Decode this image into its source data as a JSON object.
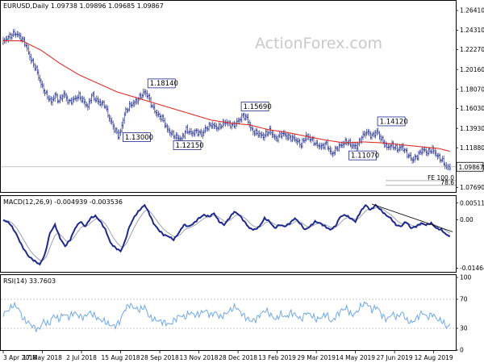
{
  "header": {
    "title": "EURUSD,Daily  1.09738 1.09896 1.09685 1.09867"
  },
  "watermark": "ActionForex.com",
  "colors": {
    "price": "#1e2a8a",
    "ma": "#e0302a",
    "macd": "#1e2a8a",
    "signal": "#9aa0b4",
    "rsi": "#6fa8e8",
    "box": "#1e2a8a",
    "background": "#ffffff"
  },
  "chart_data": [
    {
      "type": "line",
      "title": "EURUSD,Daily  1.09738 1.09896 1.09685 1.09867",
      "x_tick_labels": [
        "3 Apr 2018",
        "17 May 2018",
        "2 Jul 2018",
        "15 Aug 2018",
        "28 Sep 2018",
        "13 Nov 2018",
        "28 Dec 2018",
        "13 Feb 2019",
        "29 Mar 2019",
        "14 May 2019",
        "27 Jun 2019",
        "12 Aug 2019"
      ],
      "x_tick_index": [
        0,
        31,
        62,
        93,
        124,
        155,
        186,
        217,
        248,
        279,
        310,
        341
      ],
      "y_ticks": [
        1.2641,
        1.2431,
        1.2227,
        1.2016,
        1.1807,
        1.1603,
        1.1393,
        1.1188,
        1.0978,
        1.0769
      ],
      "y_tick_labels": [
        "1.26410",
        "1.24310",
        "1.22270",
        "1.20160",
        "1.18070",
        "1.16030",
        "1.13930",
        "1.11880",
        "1.09780",
        "1.07690"
      ],
      "ylim": [
        1.072,
        1.2735
      ],
      "n_bars": 355,
      "close_anchors": [
        [
          0,
          1.231
        ],
        [
          4,
          1.236
        ],
        [
          9,
          1.24
        ],
        [
          13,
          1.237
        ],
        [
          17,
          1.23
        ],
        [
          22,
          1.212
        ],
        [
          26,
          1.202
        ],
        [
          30,
          1.186
        ],
        [
          34,
          1.175
        ],
        [
          38,
          1.167
        ],
        [
          41,
          1.175
        ],
        [
          44,
          1.168
        ],
        [
          48,
          1.176
        ],
        [
          52,
          1.167
        ],
        [
          56,
          1.17
        ],
        [
          60,
          1.174
        ],
        [
          64,
          1.167
        ],
        [
          67,
          1.162
        ],
        [
          70,
          1.175
        ],
        [
          73,
          1.17
        ],
        [
          77,
          1.166
        ],
        [
          80,
          1.165
        ],
        [
          84,
          1.15
        ],
        [
          88,
          1.139
        ],
        [
          91,
          1.132
        ],
        [
          93,
          1.136
        ],
        [
          96,
          1.155
        ],
        [
          100,
          1.163
        ],
        [
          104,
          1.167
        ],
        [
          108,
          1.172
        ],
        [
          112,
          1.178
        ],
        [
          115,
          1.173
        ],
        [
          118,
          1.162
        ],
        [
          122,
          1.154
        ],
        [
          126,
          1.15
        ],
        [
          130,
          1.138
        ],
        [
          134,
          1.133
        ],
        [
          137,
          1.13
        ],
        [
          141,
          1.128
        ],
        [
          145,
          1.138
        ],
        [
          149,
          1.134
        ],
        [
          153,
          1.136
        ],
        [
          157,
          1.133
        ],
        [
          161,
          1.14
        ],
        [
          165,
          1.143
        ],
        [
          170,
          1.14
        ],
        [
          176,
          1.146
        ],
        [
          182,
          1.142
        ],
        [
          186,
          1.147
        ],
        [
          190,
          1.153
        ],
        [
          193,
          1.15
        ],
        [
          197,
          1.137
        ],
        [
          201,
          1.134
        ],
        [
          206,
          1.131
        ],
        [
          211,
          1.137
        ],
        [
          216,
          1.128
        ],
        [
          221,
          1.134
        ],
        [
          226,
          1.13
        ],
        [
          231,
          1.128
        ],
        [
          236,
          1.122
        ],
        [
          240,
          1.131
        ],
        [
          244,
          1.128
        ],
        [
          248,
          1.122
        ],
        [
          252,
          1.12
        ],
        [
          256,
          1.123
        ],
        [
          260,
          1.112
        ],
        [
          264,
          1.118
        ],
        [
          268,
          1.122
        ],
        [
          272,
          1.126
        ],
        [
          276,
          1.121
        ],
        [
          280,
          1.12
        ],
        [
          284,
          1.13
        ],
        [
          288,
          1.136
        ],
        [
          292,
          1.131
        ],
        [
          296,
          1.136
        ],
        [
          300,
          1.127
        ],
        [
          304,
          1.119
        ],
        [
          308,
          1.122
        ],
        [
          312,
          1.117
        ],
        [
          316,
          1.12
        ],
        [
          320,
          1.112
        ],
        [
          324,
          1.106
        ],
        [
          328,
          1.11
        ],
        [
          332,
          1.117
        ],
        [
          336,
          1.114
        ],
        [
          340,
          1.117
        ],
        [
          344,
          1.11
        ],
        [
          348,
          1.105
        ],
        [
          351,
          1.098
        ],
        [
          354,
          1.0987
        ]
      ],
      "moving_average_anchors": [
        [
          0,
          1.232
        ],
        [
          15,
          1.232
        ],
        [
          30,
          1.222
        ],
        [
          45,
          1.208
        ],
        [
          60,
          1.196
        ],
        [
          75,
          1.187
        ],
        [
          90,
          1.178
        ],
        [
          105,
          1.172
        ],
        [
          120,
          1.166
        ],
        [
          135,
          1.16
        ],
        [
          150,
          1.154
        ],
        [
          165,
          1.148
        ],
        [
          180,
          1.145
        ],
        [
          195,
          1.143
        ],
        [
          210,
          1.138
        ],
        [
          225,
          1.135
        ],
        [
          240,
          1.131
        ],
        [
          255,
          1.127
        ],
        [
          270,
          1.124
        ],
        [
          285,
          1.125
        ],
        [
          300,
          1.124
        ],
        [
          315,
          1.122
        ],
        [
          330,
          1.12
        ],
        [
          345,
          1.118
        ],
        [
          354,
          1.115
        ]
      ],
      "annotations": [
        {
          "label": "1.18140",
          "bar": 112,
          "value": 1.1814
        },
        {
          "label": "1.15690",
          "bar": 186,
          "value": 1.1569
        },
        {
          "label": "1.14120",
          "bar": 294,
          "value": 1.1412
        },
        {
          "label": "1.13000",
          "bar": 91,
          "value": 1.13
        },
        {
          "label": "1.12150",
          "bar": 131,
          "value": 1.1215
        },
        {
          "label": "1.11070",
          "bar": 270,
          "value": 1.1107
        }
      ],
      "current_price_label": "1.09867",
      "current_price": 1.09867,
      "fibonacci": [
        {
          "label": "FE 100.0",
          "value": 1.084
        },
        {
          "label": "78.6",
          "value": 1.079
        }
      ]
    },
    {
      "type": "line",
      "title": "MACD(12,26,9) -0.004939 -0.003536",
      "y_ticks": [
        0.005114,
        0.0,
        -0.014647
      ],
      "y_tick_labels": [
        "0.005114",
        "0.00",
        "-0.014647"
      ],
      "ylim": [
        -0.0155,
        0.0065
      ],
      "macd_anchors": [
        [
          0,
          0.0
        ],
        [
          5,
          -0.001
        ],
        [
          10,
          -0.004
        ],
        [
          15,
          -0.008
        ],
        [
          20,
          -0.011
        ],
        [
          25,
          -0.0125
        ],
        [
          29,
          -0.0135
        ],
        [
          33,
          -0.0105
        ],
        [
          37,
          -0.004
        ],
        [
          41,
          -0.0015
        ],
        [
          45,
          -0.0055
        ],
        [
          49,
          -0.008
        ],
        [
          53,
          -0.006
        ],
        [
          57,
          -0.0025
        ],
        [
          61,
          -0.0005
        ],
        [
          65,
          -0.002
        ],
        [
          69,
          0.0005
        ],
        [
          73,
          0.0012
        ],
        [
          77,
          -0.0005
        ],
        [
          81,
          -0.003
        ],
        [
          85,
          -0.007
        ],
        [
          89,
          -0.0085
        ],
        [
          93,
          -0.0095
        ],
        [
          96,
          -0.007
        ],
        [
          100,
          -0.002
        ],
        [
          104,
          0.001
        ],
        [
          108,
          0.003
        ],
        [
          112,
          0.0045
        ],
        [
          115,
          0.0025
        ],
        [
          119,
          -0.001
        ],
        [
          123,
          -0.003
        ],
        [
          127,
          -0.0045
        ],
        [
          131,
          -0.005
        ],
        [
          135,
          -0.006
        ],
        [
          139,
          -0.004
        ],
        [
          143,
          -0.0015
        ],
        [
          147,
          -0.002
        ],
        [
          151,
          -0.001
        ],
        [
          155,
          0.0005
        ],
        [
          159,
          0.0015
        ],
        [
          163,
          0.001
        ],
        [
          167,
          0.002
        ],
        [
          171,
          -0.0005
        ],
        [
          175,
          -0.0015
        ],
        [
          179,
          0.0005
        ],
        [
          183,
          0.0025
        ],
        [
          187,
          0.0015
        ],
        [
          191,
          -0.0005
        ],
        [
          195,
          -0.0025
        ],
        [
          199,
          -0.003
        ],
        [
          203,
          -0.002
        ],
        [
          207,
          0.0005
        ],
        [
          211,
          -0.0005
        ],
        [
          215,
          -0.0025
        ],
        [
          219,
          -0.0015
        ],
        [
          223,
          -0.002
        ],
        [
          227,
          -0.001
        ],
        [
          231,
          0.0005
        ],
        [
          235,
          -0.001
        ],
        [
          239,
          -0.003
        ],
        [
          243,
          -0.002
        ],
        [
          247,
          -0.0005
        ],
        [
          251,
          -0.001
        ],
        [
          255,
          -0.002
        ],
        [
          259,
          -0.003
        ],
        [
          263,
          -0.002
        ],
        [
          267,
          0.001
        ],
        [
          271,
          0.0015
        ],
        [
          275,
          0.0005
        ],
        [
          279,
          -0.0005
        ],
        [
          283,
          0.0025
        ],
        [
          287,
          0.0045
        ],
        [
          291,
          0.003
        ],
        [
          295,
          0.0045
        ],
        [
          299,
          0.003
        ],
        [
          303,
          0.0015
        ],
        [
          307,
          0.0005
        ],
        [
          311,
          -0.0015
        ],
        [
          315,
          -0.002
        ],
        [
          319,
          -0.0005
        ],
        [
          323,
          -0.0025
        ],
        [
          327,
          -0.002
        ],
        [
          331,
          -0.001
        ],
        [
          335,
          -0.0015
        ],
        [
          339,
          -0.001
        ],
        [
          343,
          -0.0025
        ],
        [
          347,
          -0.003
        ],
        [
          351,
          -0.0045
        ],
        [
          354,
          -0.0049
        ]
      ],
      "trendline": [
        [
          292,
          0.0048
        ],
        [
          356,
          -0.0036
        ]
      ]
    },
    {
      "type": "line",
      "title": "RSI(14) 33.7603",
      "y_ticks": [
        100,
        70,
        30,
        0
      ],
      "y_tick_labels": [
        "100",
        "70",
        "30",
        "0"
      ],
      "ylim": [
        0,
        100
      ],
      "rsi_anchors": [
        [
          0,
          50
        ],
        [
          4,
          55
        ],
        [
          8,
          62
        ],
        [
          12,
          58
        ],
        [
          16,
          42
        ],
        [
          20,
          38
        ],
        [
          24,
          32
        ],
        [
          28,
          28
        ],
        [
          32,
          40
        ],
        [
          36,
          35
        ],
        [
          40,
          48
        ],
        [
          44,
          42
        ],
        [
          48,
          50
        ],
        [
          52,
          45
        ],
        [
          56,
          52
        ],
        [
          60,
          47
        ],
        [
          64,
          45
        ],
        [
          68,
          52
        ],
        [
          72,
          48
        ],
        [
          76,
          42
        ],
        [
          80,
          40
        ],
        [
          84,
          35
        ],
        [
          88,
          33
        ],
        [
          92,
          38
        ],
        [
          96,
          55
        ],
        [
          100,
          63
        ],
        [
          104,
          58
        ],
        [
          108,
          55
        ],
        [
          112,
          60
        ],
        [
          116,
          45
        ],
        [
          120,
          42
        ],
        [
          124,
          40
        ],
        [
          128,
          38
        ],
        [
          132,
          35
        ],
        [
          136,
          42
        ],
        [
          140,
          48
        ],
        [
          144,
          45
        ],
        [
          148,
          52
        ],
        [
          152,
          48
        ],
        [
          156,
          50
        ],
        [
          160,
          55
        ],
        [
          164,
          48
        ],
        [
          168,
          52
        ],
        [
          172,
          45
        ],
        [
          176,
          50
        ],
        [
          180,
          55
        ],
        [
          184,
          60
        ],
        [
          188,
          52
        ],
        [
          192,
          45
        ],
        [
          196,
          40
        ],
        [
          200,
          42
        ],
        [
          204,
          50
        ],
        [
          208,
          55
        ],
        [
          212,
          48
        ],
        [
          216,
          42
        ],
        [
          220,
          50
        ],
        [
          224,
          45
        ],
        [
          228,
          52
        ],
        [
          232,
          48
        ],
        [
          236,
          42
        ],
        [
          240,
          52
        ],
        [
          244,
          48
        ],
        [
          248,
          42
        ],
        [
          252,
          45
        ],
        [
          256,
          50
        ],
        [
          260,
          38
        ],
        [
          264,
          48
        ],
        [
          268,
          55
        ],
        [
          272,
          58
        ],
        [
          276,
          48
        ],
        [
          280,
          52
        ],
        [
          284,
          62
        ],
        [
          288,
          65
        ],
        [
          292,
          55
        ],
        [
          296,
          60
        ],
        [
          300,
          48
        ],
        [
          304,
          42
        ],
        [
          308,
          50
        ],
        [
          312,
          45
        ],
        [
          316,
          52
        ],
        [
          320,
          40
        ],
        [
          324,
          38
        ],
        [
          328,
          45
        ],
        [
          332,
          52
        ],
        [
          336,
          45
        ],
        [
          340,
          50
        ],
        [
          344,
          42
        ],
        [
          348,
          40
        ],
        [
          351,
          32
        ],
        [
          354,
          33.76
        ]
      ]
    }
  ]
}
